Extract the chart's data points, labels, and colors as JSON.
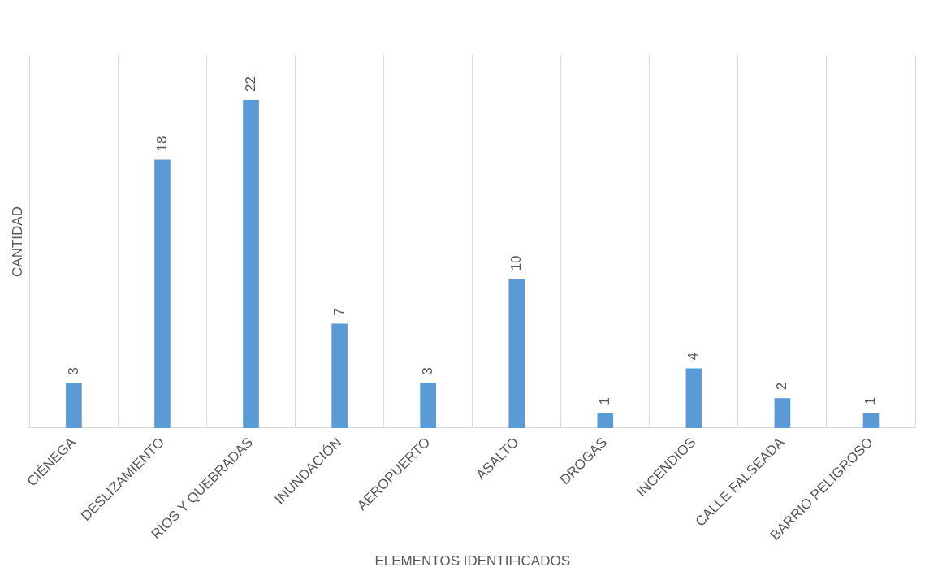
{
  "chart_data": {
    "type": "bar",
    "xlabel": "ELEMENTOS IDENTIFICADOS",
    "ylabel": "CANTIDAD",
    "categories": [
      "CIÉNEGA",
      "DESLIZAMIENTO",
      "RÍOS Y QUEBRADAS",
      "INUNDACIÓN",
      "AEROPUERTO",
      "ASALTO",
      "DROGAS",
      "INCENDIOS",
      "CALLE FALSEADA",
      "BARRIO PELIGROSO"
    ],
    "values": [
      3,
      18,
      22,
      7,
      3,
      10,
      1,
      4,
      2,
      1
    ],
    "color": "#5b9bd5",
    "data_labels": true,
    "grid": "x",
    "legend": false
  }
}
